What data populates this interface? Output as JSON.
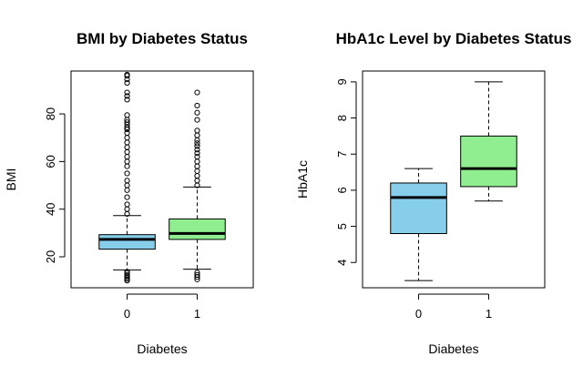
{
  "chart_data": [
    {
      "type": "boxplot",
      "title": "BMI by Diabetes Status",
      "xlabel": "Diabetes",
      "ylabel": "BMI",
      "ylim": [
        7,
        98
      ],
      "yticks": [
        20,
        40,
        60,
        80
      ],
      "categories": [
        "0",
        "1"
      ],
      "colors": [
        "#87CEEB",
        "#90EE90"
      ],
      "boxes": [
        {
          "category": "0",
          "whisker_low": 14.5,
          "q1": 23.2,
          "median": 27.3,
          "q3": 29.3,
          "whisker_high": 37.3,
          "outliers": [
            10,
            10.6,
            11.2,
            11.9,
            12.4,
            13.2,
            13.7,
            38,
            40,
            42,
            45,
            48,
            50,
            52,
            55,
            58,
            60,
            62,
            64,
            66,
            68,
            70,
            72,
            73.5,
            74.3,
            75.5,
            76.5,
            77.5,
            79.5,
            86,
            87.5,
            89,
            93,
            94.5,
            96,
            96.5
          ]
        },
        {
          "category": "1",
          "whisker_low": 14.8,
          "q1": 27.3,
          "median": 29.8,
          "q3": 35.9,
          "whisker_high": 49.3,
          "outliers": [
            10.5,
            11.5,
            12.4,
            13.4,
            50,
            52,
            54,
            56,
            58,
            60,
            62,
            63.5,
            65,
            66.5,
            67.7,
            69,
            71,
            73,
            77.5,
            80.5,
            83.5,
            89
          ]
        }
      ]
    },
    {
      "type": "boxplot",
      "title": "HbA1c Level by Diabetes Status",
      "xlabel": "Diabetes",
      "ylabel": "HbA1c",
      "ylim": [
        3.3,
        9.3
      ],
      "yticks": [
        4,
        5,
        6,
        7,
        8,
        9
      ],
      "categories": [
        "0",
        "1"
      ],
      "colors": [
        "#87CEEB",
        "#90EE90"
      ],
      "boxes": [
        {
          "category": "0",
          "whisker_low": 3.5,
          "q1": 4.8,
          "median": 5.8,
          "q3": 6.2,
          "whisker_high": 6.6,
          "outliers": []
        },
        {
          "category": "1",
          "whisker_low": 5.7,
          "q1": 6.1,
          "median": 6.6,
          "q3": 7.5,
          "whisker_high": 9.0,
          "outliers": []
        }
      ]
    }
  ]
}
